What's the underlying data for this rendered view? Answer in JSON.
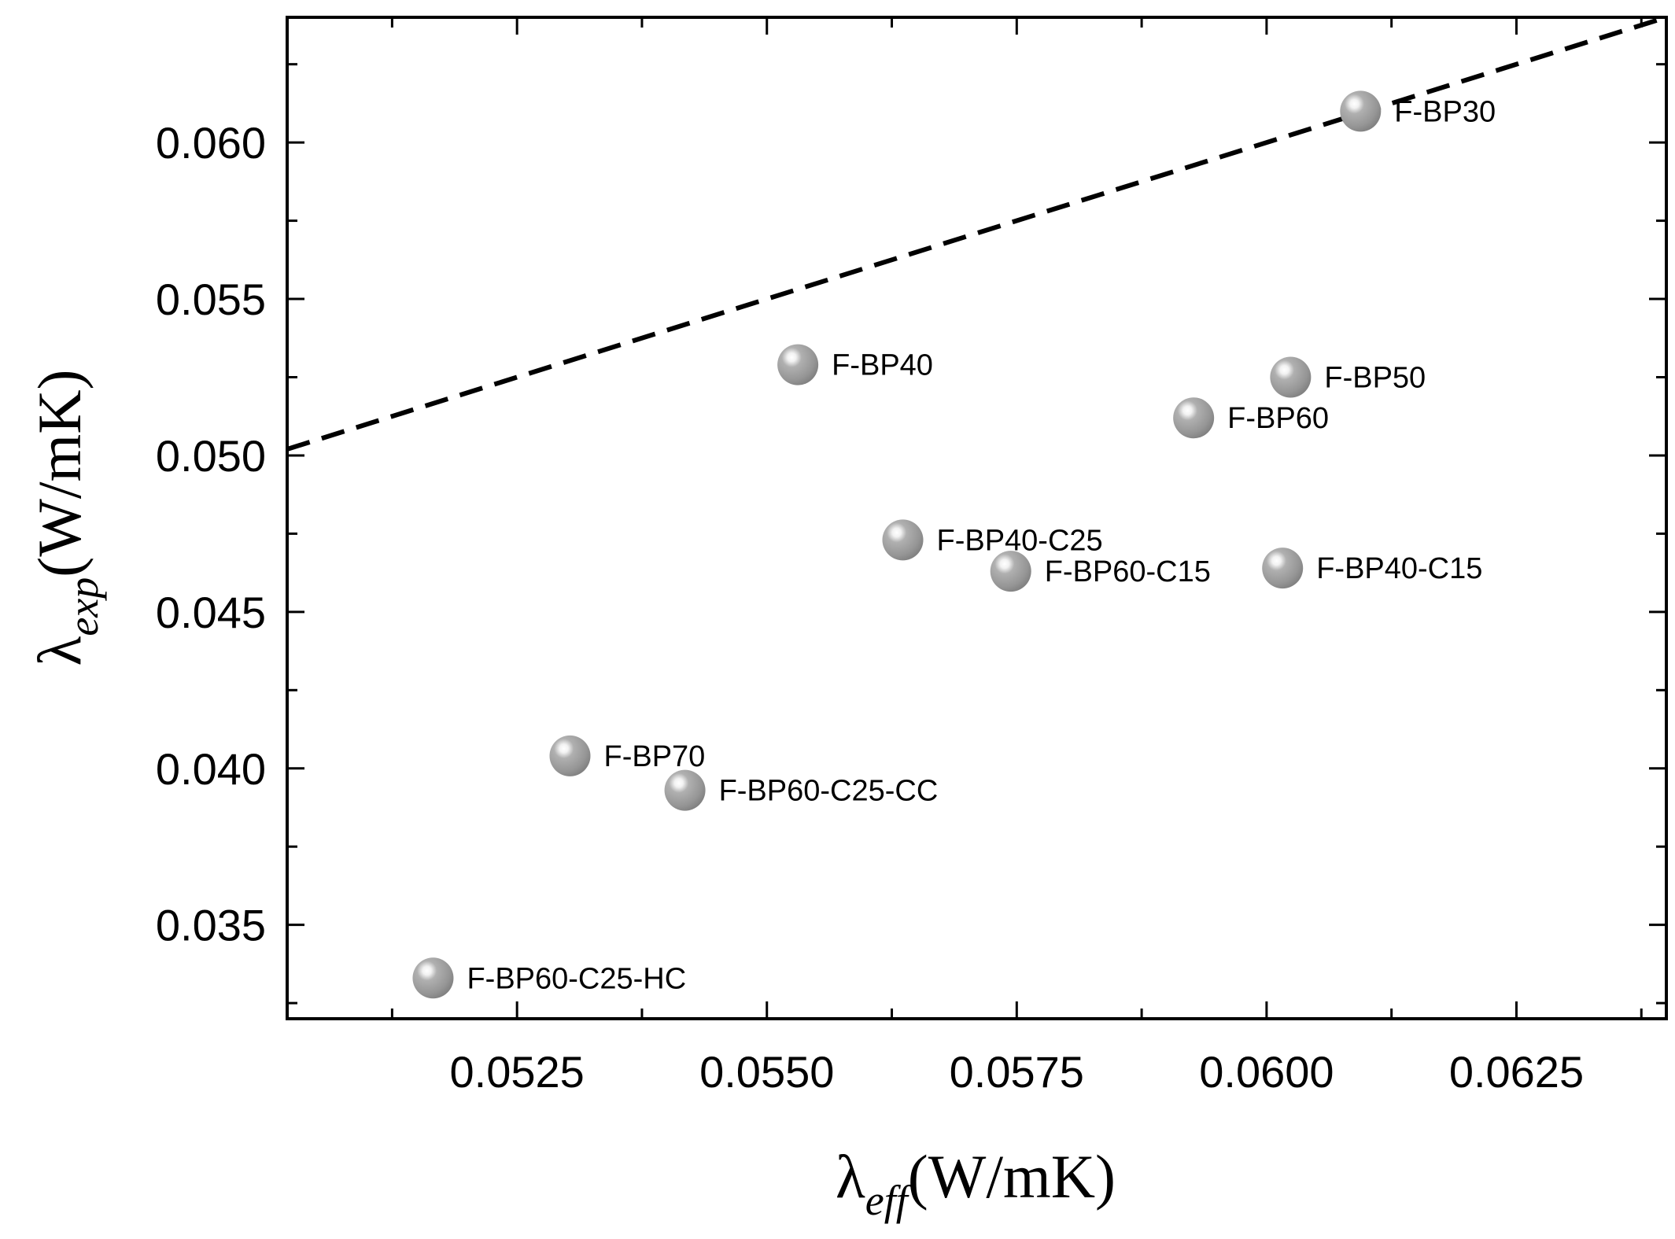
{
  "chart_data": {
    "type": "scatter",
    "title": "",
    "xlabel": {
      "symbol": "λ",
      "subscript": "eff",
      "unit": "(W/mK)"
    },
    "ylabel": {
      "symbol": "λ",
      "subscript": "exp",
      "unit": "(W/mK)"
    },
    "xlim": [
      0.0502,
      0.064
    ],
    "ylim": [
      0.032,
      0.064
    ],
    "x_ticks": [
      "0.0525",
      "0.0550",
      "0.0575",
      "0.0600",
      "0.0625"
    ],
    "y_ticks": [
      "0.035",
      "0.040",
      "0.045",
      "0.050",
      "0.055",
      "0.060"
    ],
    "grid": false,
    "legend": "none",
    "points": [
      {
        "label": "F-BP30",
        "x": 0.06094,
        "y": 0.061
      },
      {
        "label": "F-BP40",
        "x": 0.05531,
        "y": 0.0529
      },
      {
        "label": "F-BP50",
        "x": 0.06024,
        "y": 0.0525
      },
      {
        "label": "F-BP60",
        "x": 0.05927,
        "y": 0.0512
      },
      {
        "label": "F-BP40-C25",
        "x": 0.05636,
        "y": 0.0473
      },
      {
        "label": "F-BP60-C15",
        "x": 0.05744,
        "y": 0.0463
      },
      {
        "label": "F-BP40-C15",
        "x": 0.06016,
        "y": 0.0464
      },
      {
        "label": "F-BP70",
        "x": 0.05303,
        "y": 0.0404
      },
      {
        "label": "F-BP60-C25-CC",
        "x": 0.05418,
        "y": 0.0393
      },
      {
        "label": "F-BP60-C25-HC",
        "x": 0.05166,
        "y": 0.0333
      }
    ],
    "reference_line": {
      "style": "dashed",
      "x": [
        0.0502,
        0.064
      ],
      "y": [
        0.0502,
        0.064
      ]
    },
    "colors": {
      "marker": "#9a9a9a",
      "marker_highlight": "#ffffff",
      "axis": "#000000",
      "line": "#000000"
    }
  }
}
